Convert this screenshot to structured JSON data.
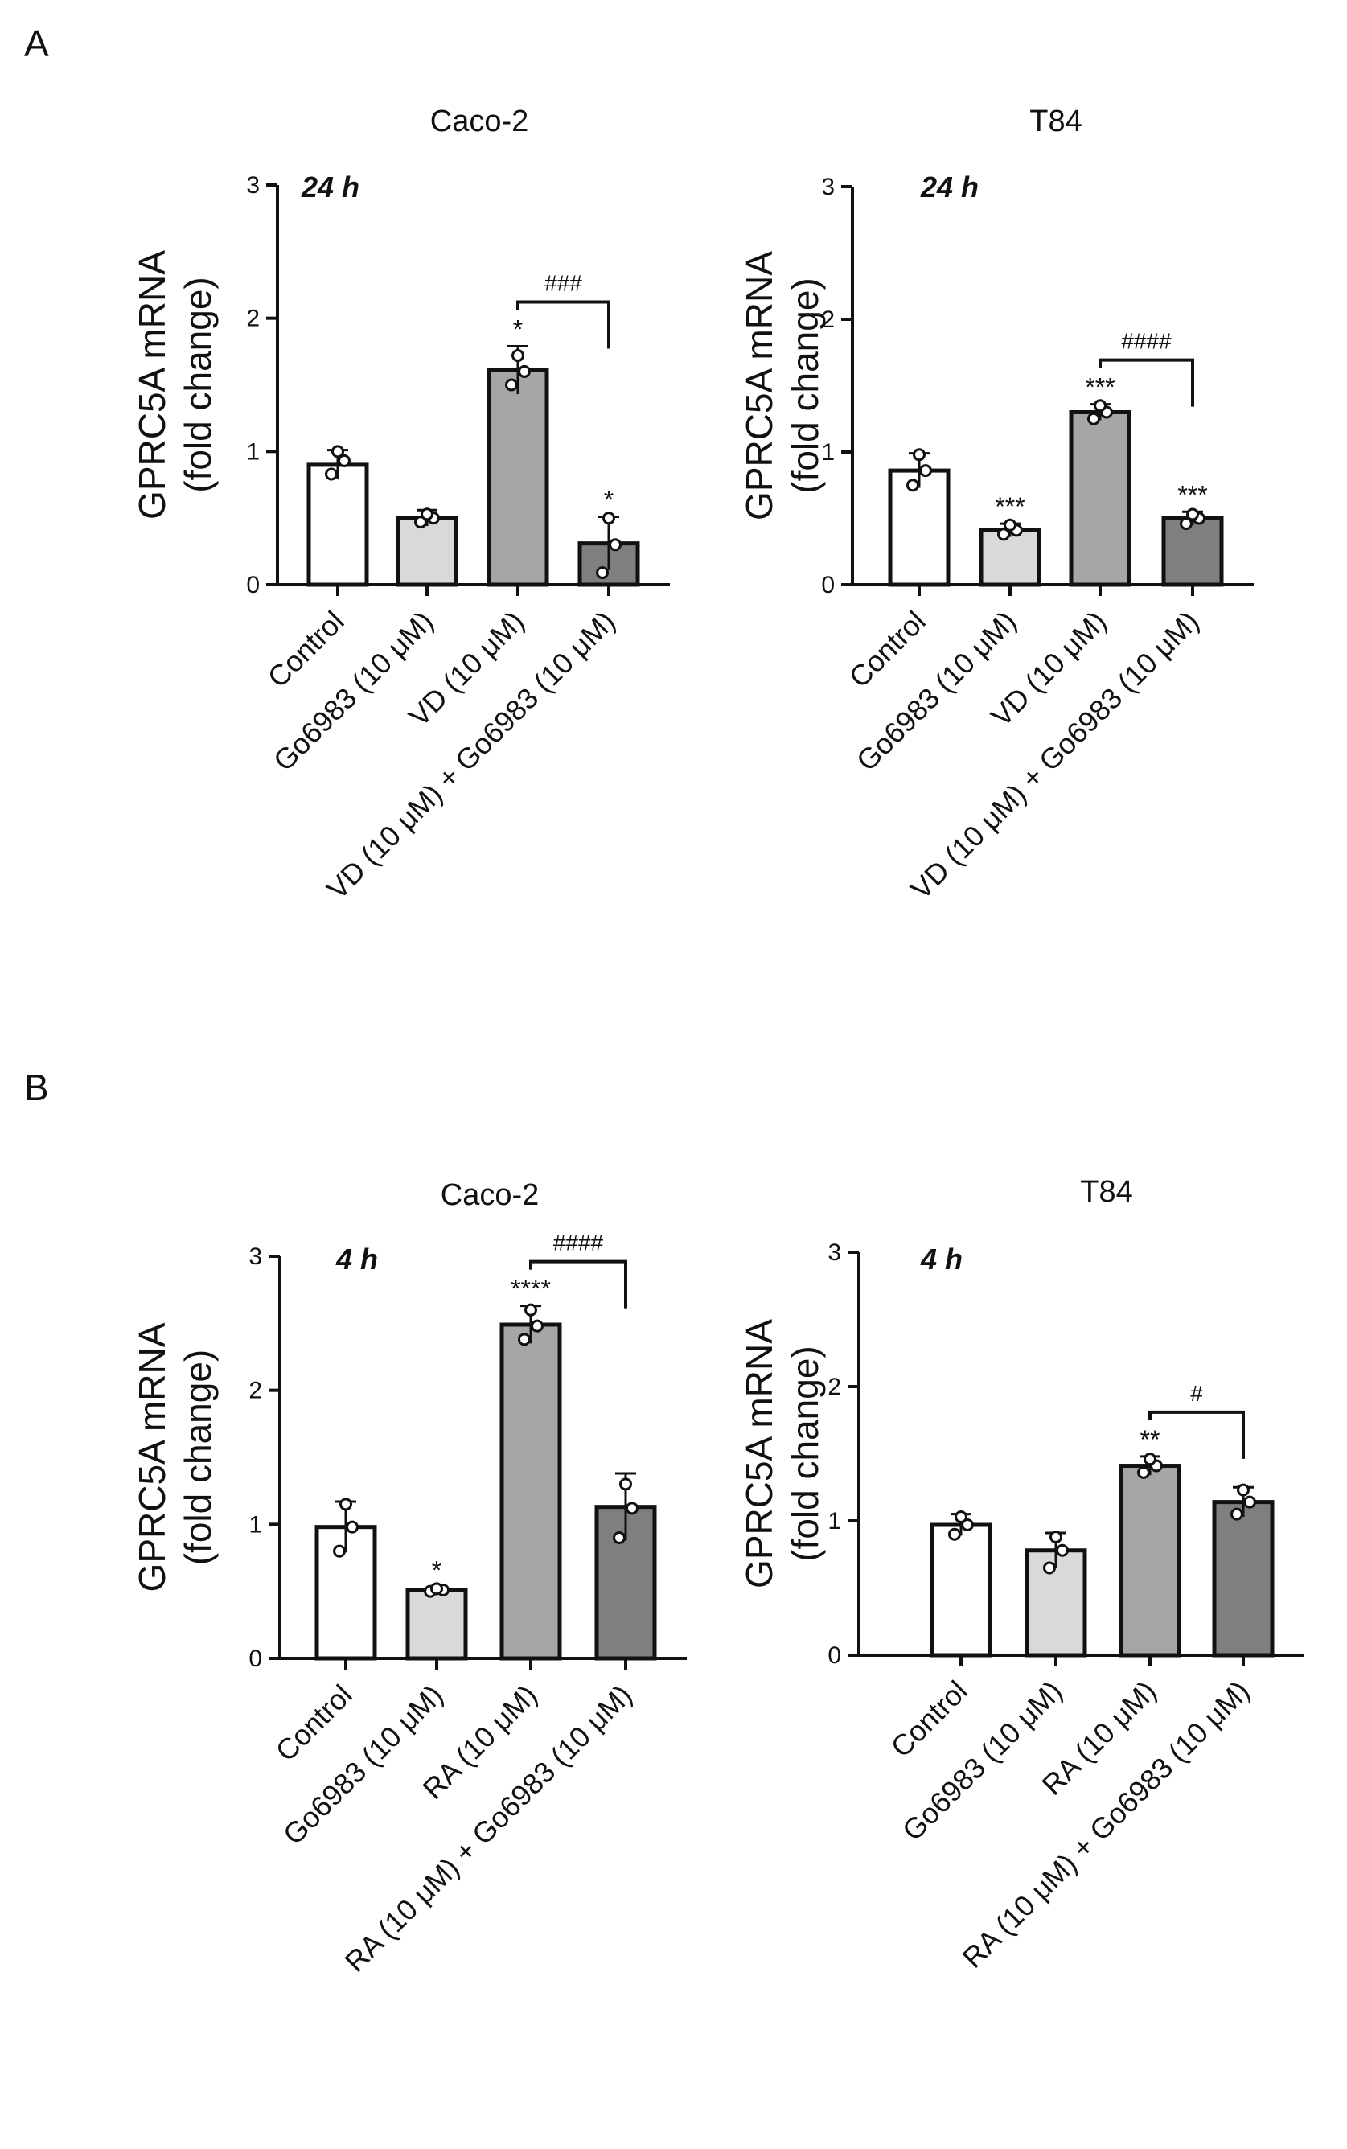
{
  "panel_labels": [
    "A",
    "B"
  ],
  "colors": {
    "bar_fills": [
      "#ffffff",
      "#d9d9d9",
      "#a6a6a6",
      "#7f7f7f"
    ],
    "stroke": "#111111"
  },
  "chart_data": [
    {
      "type": "bar",
      "panel": "A",
      "title": "Caco-2",
      "time_label": "24 h",
      "ylabel_line1": "GPRC5A mRNA",
      "ylabel_line2": "(fold change)",
      "ylim": [
        0,
        3
      ],
      "yticks": [
        0,
        1,
        2,
        3
      ],
      "categories": [
        "Control",
        "Go6983 (10 μM)",
        "VD  (10 μM)",
        "VD  (10 μM) + Go6983 (10 μM)"
      ],
      "values": [
        0.9,
        0.5,
        1.61,
        0.31
      ],
      "errors": [
        0.11,
        0.06,
        0.18,
        0.2
      ],
      "points": [
        [
          0.83,
          0.93,
          1.0
        ],
        [
          0.47,
          0.5,
          0.53
        ],
        [
          1.5,
          1.6,
          1.72
        ],
        [
          0.09,
          0.3,
          0.5
        ]
      ],
      "significance": [
        "",
        "",
        "*",
        "*"
      ],
      "bracket": {
        "from": 2,
        "to": 3,
        "label": "###"
      }
    },
    {
      "type": "bar",
      "panel": "A",
      "title": "T84",
      "time_label": "24 h",
      "ylabel_line1": "GPRC5A mRNA",
      "ylabel_line2": "(fold change)",
      "ylim": [
        0,
        3
      ],
      "yticks": [
        0,
        1,
        2,
        3
      ],
      "categories": [
        "Control",
        "Go6983 (10 μM)",
        "VD  (10 μM)",
        "VD  (10 μM) + Go6983 (10 μM)"
      ],
      "values": [
        0.86,
        0.41,
        1.3,
        0.5
      ],
      "errors": [
        0.13,
        0.05,
        0.06,
        0.05
      ],
      "points": [
        [
          0.75,
          0.86,
          0.98
        ],
        [
          0.38,
          0.41,
          0.45
        ],
        [
          1.25,
          1.3,
          1.35
        ],
        [
          0.46,
          0.5,
          0.53
        ]
      ],
      "significance": [
        "",
        "***",
        "***",
        "***"
      ],
      "bracket": {
        "from": 2,
        "to": 3,
        "label": "####"
      }
    },
    {
      "type": "bar",
      "panel": "B",
      "title": "Caco-2",
      "time_label": "4 h",
      "ylabel_line1": "GPRC5A mRNA",
      "ylabel_line2": "(fold change)",
      "ylim": [
        0,
        3
      ],
      "yticks": [
        0,
        1,
        2,
        3
      ],
      "categories": [
        "Control",
        "Go6983 (10 μM)",
        "RA (10 μM)",
        "RA (10 μM) + Go6983 (10 μM)"
      ],
      "values": [
        0.98,
        0.51,
        2.49,
        1.13
      ],
      "errors": [
        0.19,
        0.02,
        0.14,
        0.25
      ],
      "points": [
        [
          0.8,
          0.98,
          1.15
        ],
        [
          0.5,
          0.51,
          0.52
        ],
        [
          2.38,
          2.48,
          2.6
        ],
        [
          0.9,
          1.12,
          1.3
        ]
      ],
      "significance": [
        "",
        "*",
        "****",
        ""
      ],
      "bracket": {
        "from": 2,
        "to": 3,
        "label": "####"
      }
    },
    {
      "type": "bar",
      "panel": "B",
      "title": "T84",
      "time_label": "4 h",
      "ylabel_line1": "GPRC5A mRNA",
      "ylabel_line2": "(fold change)",
      "ylim": [
        0,
        3
      ],
      "yticks": [
        0,
        1,
        2,
        3
      ],
      "categories": [
        "Control",
        "Go6983 (10 μM)",
        "RA (10 μM)",
        "RA (10 μM) + Go6983 (10 μM)"
      ],
      "values": [
        0.97,
        0.78,
        1.41,
        1.14
      ],
      "errors": [
        0.08,
        0.13,
        0.07,
        0.11
      ],
      "points": [
        [
          0.9,
          0.97,
          1.03
        ],
        [
          0.65,
          0.78,
          0.88
        ],
        [
          1.36,
          1.41,
          1.46
        ],
        [
          1.05,
          1.14,
          1.23
        ]
      ],
      "significance": [
        "",
        "",
        "**",
        ""
      ],
      "bracket": {
        "from": 2,
        "to": 3,
        "label": "#"
      }
    }
  ]
}
